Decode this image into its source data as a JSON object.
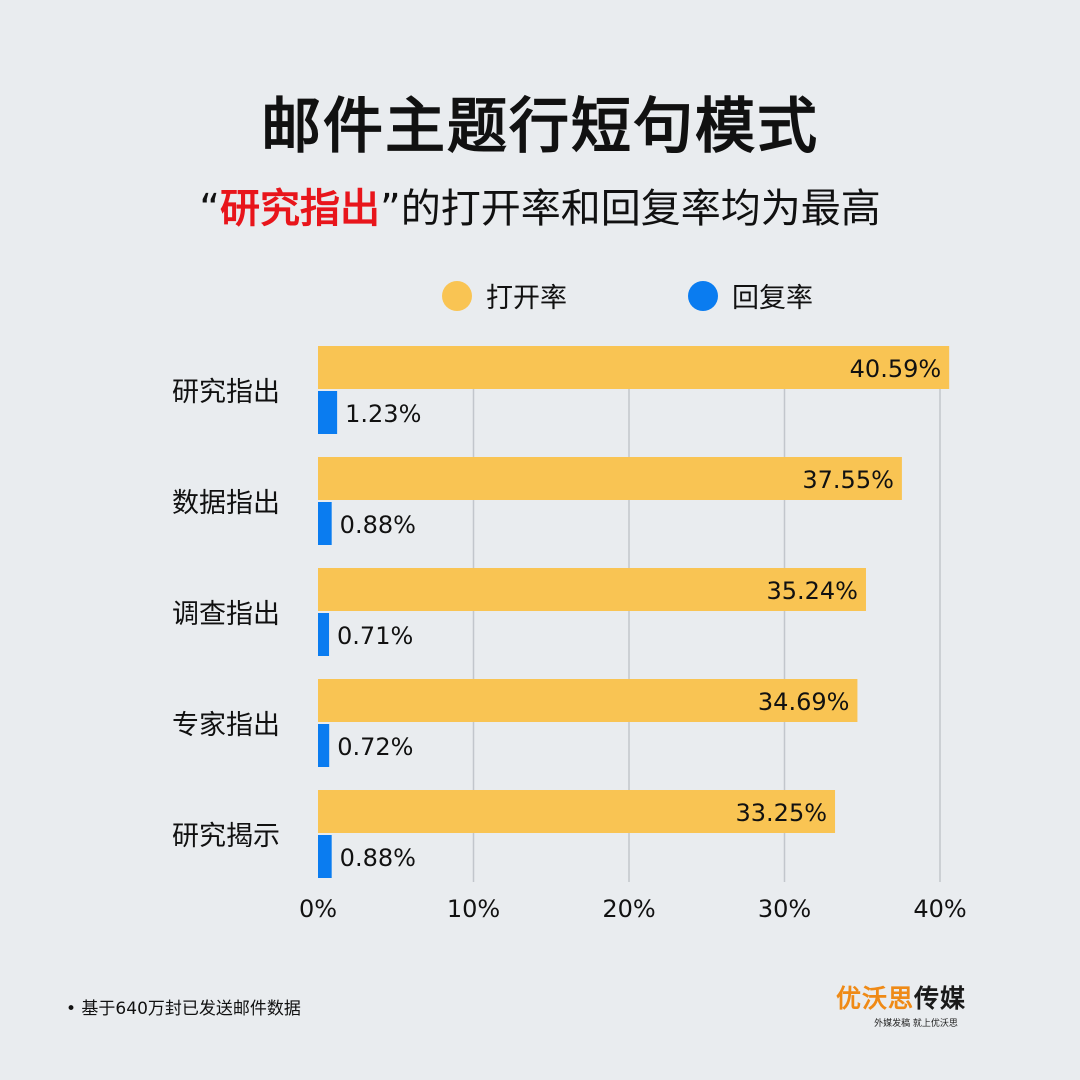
{
  "title": "邮件主题行短句模式",
  "subtitle": {
    "quote_open": "“",
    "highlight": "研究指出",
    "quote_close": "”",
    "rest": "的打开率和回复率均为最高"
  },
  "colors": {
    "open": "#f9c453",
    "reply": "#0a7cf0",
    "grid": "#c2c6cc",
    "highlight": "#e8151b"
  },
  "chart_data": {
    "type": "bar",
    "orientation": "horizontal",
    "categories": [
      "研究指出",
      "数据指出",
      "调查指出",
      "专家指出",
      "研究揭示"
    ],
    "series": [
      {
        "name": "打开率",
        "values": [
          40.59,
          37.55,
          35.24,
          34.69,
          33.25
        ],
        "labels": [
          "40.59%",
          "37.55%",
          "35.24%",
          "34.69%",
          "33.25%"
        ]
      },
      {
        "name": "回复率",
        "values": [
          1.23,
          0.88,
          0.71,
          0.72,
          0.88
        ],
        "labels": [
          "1.23%",
          "0.88%",
          "0.71%",
          "0.72%",
          "0.88%"
        ]
      }
    ],
    "xlim": [
      0,
      40
    ],
    "xticks": [
      0,
      10,
      20,
      30,
      40
    ],
    "xtick_labels": [
      "0%",
      "10%",
      "20%",
      "30%",
      "40%"
    ],
    "grid": true,
    "legend": "top"
  },
  "footnote": "• 基于640万封已发送邮件数据",
  "logo": {
    "orange": "优沃思",
    "dark": "传媒",
    "tagline": "外媒发稿 就上优沃思"
  }
}
